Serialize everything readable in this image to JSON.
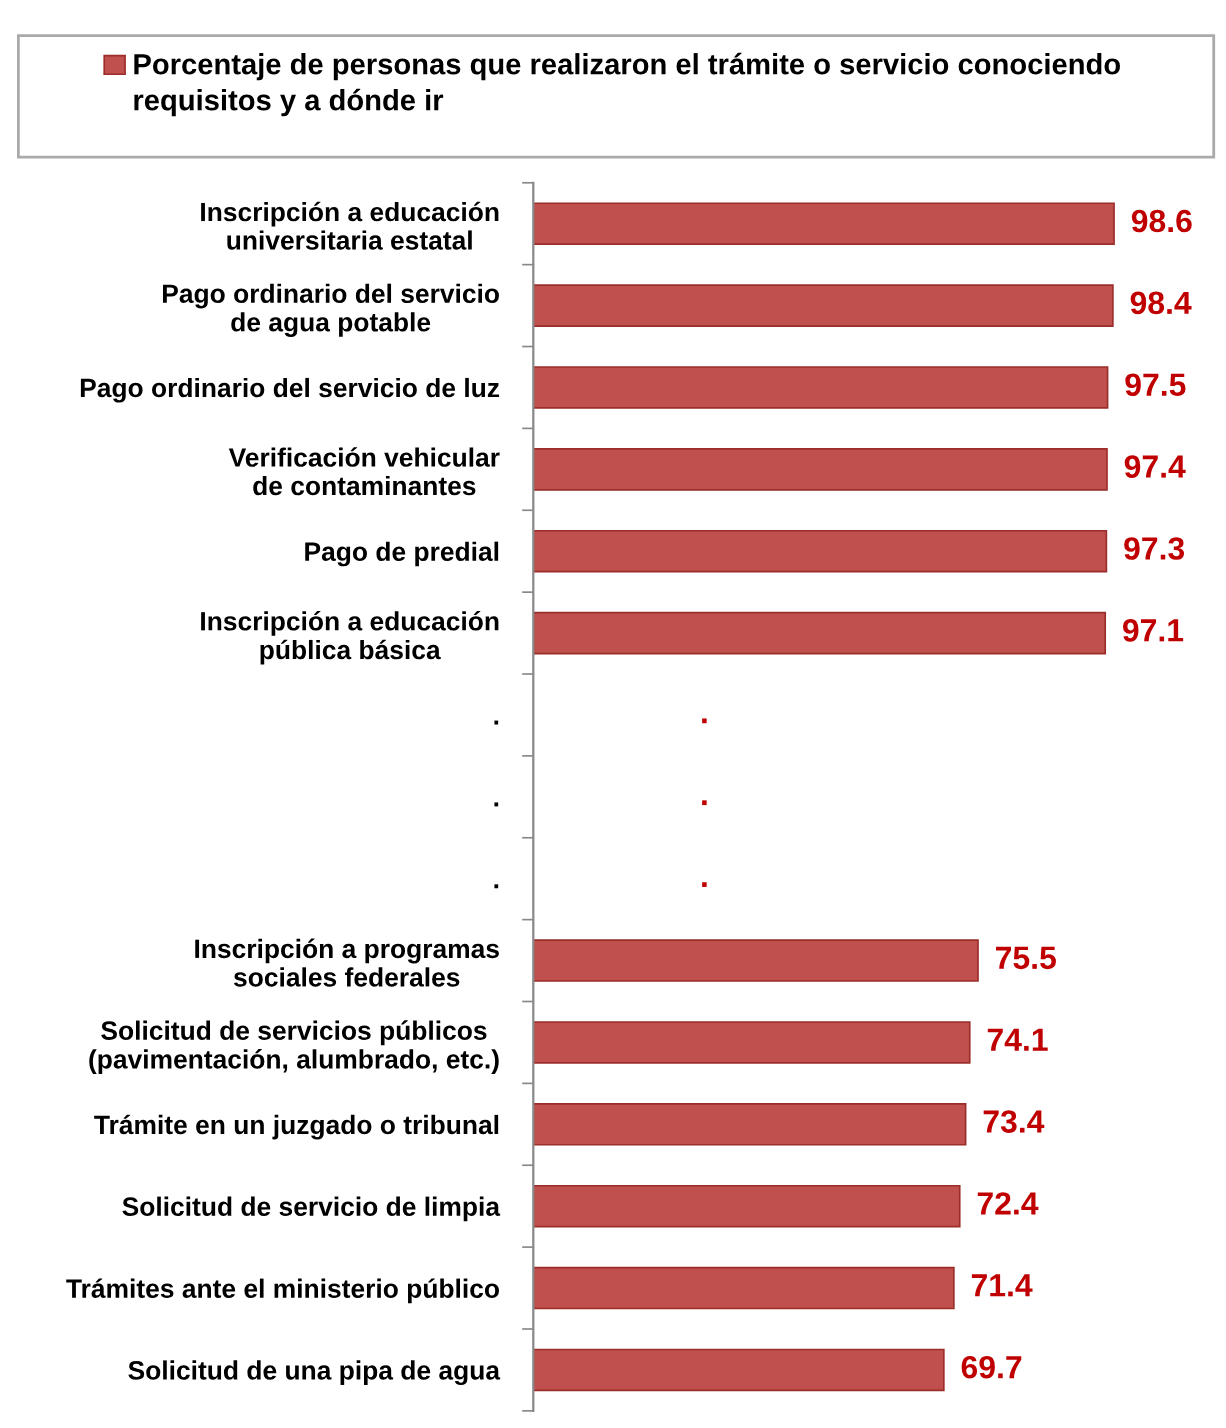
{
  "chart_data": {
    "type": "bar",
    "orientation": "horizontal",
    "legend": "top",
    "grid": false,
    "categories": [
      "Inscripción a educación\nuniversitaria estatal",
      "Pago ordinario del servicio\nde agua potable",
      "Pago ordinario del servicio de luz",
      "Verificación vehicular\nde contaminantes",
      "Pago de predial",
      "Inscripción a educación\npública básica",
      ".",
      ".",
      ".",
      "Inscripción a programas\nsociales federales",
      "Solicitud de servicios públicos\n(pavimentación, alumbrado, etc.)",
      "Trámite en un juzgado o tribunal",
      "Solicitud de servicio de limpia",
      "Trámites ante el ministerio público",
      "Solicitud de una pipa de agua"
    ],
    "series": [
      {
        "name": "Porcentaje de personas que realizaron el trámite o servicio conociendo requisitos y a dónde ir",
        "color": "#c0504d",
        "values": [
          98.6,
          98.4,
          97.5,
          97.4,
          97.3,
          97.1,
          null,
          null,
          null,
          75.5,
          74.1,
          73.4,
          72.4,
          71.4,
          69.7
        ],
        "value_labels": [
          "98.6",
          "98.4",
          "97.5",
          "97.4",
          "97.3",
          "97.1",
          ".",
          ".",
          ".",
          "75.5",
          "74.1",
          "73.4",
          "72.4",
          "71.4",
          "69.7"
        ]
      }
    ]
  }
}
